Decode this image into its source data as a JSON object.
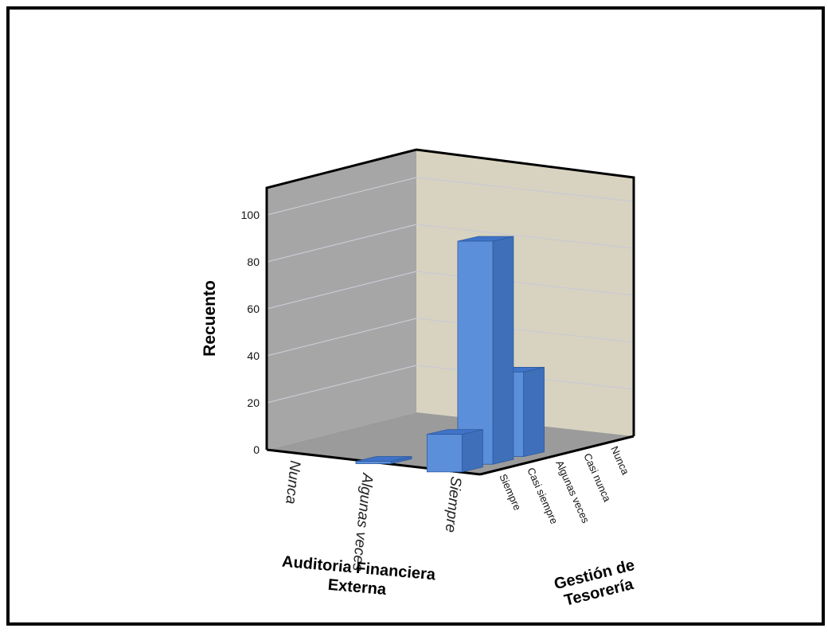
{
  "chart_data": {
    "type": "bar",
    "projection": "3d",
    "ylabel": "Recuento",
    "xlabel": "Auditoria Financiera Externa",
    "zlabel": "Gestión de Tesorería",
    "x_categories": [
      "Nunca",
      "Algunas veces",
      "Siempre"
    ],
    "z_categories": [
      "Nunca",
      "Casi nunca",
      "Algunas veces",
      "Casi siempre",
      "Siempre"
    ],
    "y_ticks": [
      0,
      20,
      40,
      60,
      80,
      100
    ],
    "ylim": [
      0,
      110
    ],
    "bars": [
      {
        "x": "Algunas veces",
        "z": "Siempre",
        "value": 1
      },
      {
        "x": "Siempre",
        "z": "Siempre",
        "value": 16
      },
      {
        "x": "Siempre",
        "z": "Casi siempre",
        "value": 95
      },
      {
        "x": "Siempre",
        "z": "Algunas veces",
        "value": 36
      }
    ],
    "colors": {
      "bar_front": "#5b8fd9",
      "bar_top": "#3f73c8",
      "bar_side": "#3e6fb8",
      "left_wall": "#a6a6a6",
      "back_wall": "#d8d3c0",
      "floor": "#9b9b9b",
      "grid": "#c9c9d4"
    }
  }
}
